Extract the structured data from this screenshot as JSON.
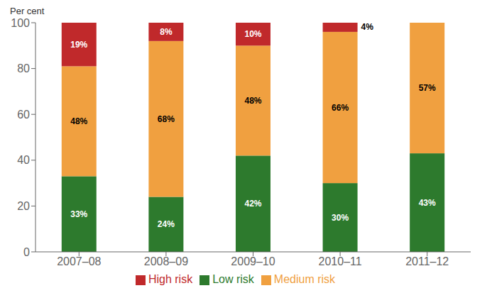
{
  "chart_data": {
    "type": "bar",
    "stacked": true,
    "ylabel": "Per cent",
    "categories": [
      "2007–08",
      "2008–09",
      "2009–10",
      "2010–11",
      "2011–12"
    ],
    "series": [
      {
        "name": "Low risk",
        "color": "#2d7a2d",
        "values": [
          33,
          24,
          42,
          30,
          43
        ],
        "value_labels": [
          "33%",
          "24%",
          "42%",
          "30%",
          "43%"
        ]
      },
      {
        "name": "Medium risk",
        "color": "#f0a040",
        "values": [
          48,
          68,
          48,
          66,
          57
        ],
        "value_labels": [
          "48%",
          "68%",
          "48%",
          "66%",
          "57%"
        ]
      },
      {
        "name": "High risk",
        "color": "#c0292b",
        "values": [
          19,
          8,
          10,
          4,
          0
        ],
        "value_labels": [
          "19%",
          "8%",
          "10%",
          "4%",
          null
        ]
      }
    ],
    "ylim": [
      0,
      100
    ],
    "yticks": [
      0,
      20,
      40,
      60,
      80,
      100
    ],
    "grid": false,
    "legend": "bottom",
    "data_labels": true
  }
}
